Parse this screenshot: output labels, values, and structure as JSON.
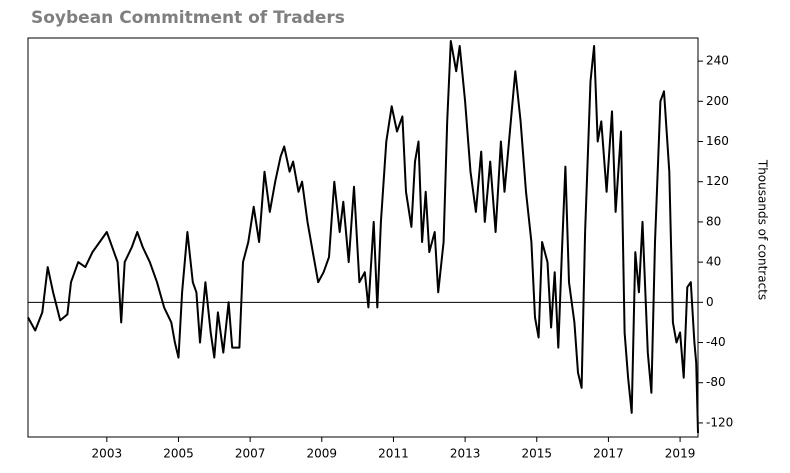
{
  "chart_data": {
    "type": "line",
    "title": "Soybean Commitment of Traders",
    "y_label": "Thousands of contracts",
    "color": "#000000",
    "x": [
      2000.8,
      2001.0,
      2001.2,
      2001.35,
      2001.5,
      2001.7,
      2001.9,
      2002.0,
      2002.2,
      2002.4,
      2002.6,
      2002.8,
      2003.0,
      2003.2,
      2003.3,
      2003.4,
      2003.5,
      2003.7,
      2003.85,
      2004.0,
      2004.2,
      2004.4,
      2004.6,
      2004.8,
      2004.9,
      2005.0,
      2005.1,
      2005.25,
      2005.4,
      2005.5,
      2005.6,
      2005.75,
      2005.9,
      2006.0,
      2006.1,
      2006.25,
      2006.4,
      2006.5,
      2006.7,
      2006.8,
      2006.95,
      2007.1,
      2007.25,
      2007.4,
      2007.55,
      2007.7,
      2007.85,
      2007.95,
      2008.1,
      2008.2,
      2008.35,
      2008.45,
      2008.6,
      2008.75,
      2008.9,
      2009.05,
      2009.2,
      2009.35,
      2009.5,
      2009.6,
      2009.75,
      2009.9,
      2010.05,
      2010.2,
      2010.3,
      2010.45,
      2010.55,
      2010.65,
      2010.8,
      2010.95,
      2011.1,
      2011.25,
      2011.35,
      2011.5,
      2011.6,
      2011.7,
      2011.8,
      2011.9,
      2012.0,
      2012.15,
      2012.25,
      2012.4,
      2012.5,
      2012.6,
      2012.75,
      2012.85,
      2013.0,
      2013.15,
      2013.3,
      2013.45,
      2013.55,
      2013.7,
      2013.85,
      2014.0,
      2014.1,
      2014.25,
      2014.4,
      2014.55,
      2014.7,
      2014.85,
      2014.95,
      2015.05,
      2015.15,
      2015.3,
      2015.4,
      2015.5,
      2015.6,
      2015.7,
      2015.8,
      2015.9,
      2016.05,
      2016.15,
      2016.25,
      2016.35,
      2016.5,
      2016.6,
      2016.7,
      2016.8,
      2016.95,
      2017.1,
      2017.2,
      2017.35,
      2017.45,
      2017.55,
      2017.65,
      2017.75,
      2017.85,
      2017.95,
      2018.1,
      2018.2,
      2018.3,
      2018.45,
      2018.55,
      2018.7,
      2018.8,
      2018.9,
      2019.0,
      2019.1,
      2019.2,
      2019.3,
      2019.4,
      2019.45,
      2019.5
    ],
    "values": [
      -15,
      -28,
      -10,
      35,
      10,
      -18,
      -12,
      20,
      40,
      35,
      50,
      60,
      70,
      50,
      40,
      -20,
      40,
      55,
      70,
      55,
      40,
      20,
      -5,
      -20,
      -40,
      -55,
      10,
      70,
      20,
      10,
      -40,
      20,
      -30,
      -55,
      -10,
      -50,
      0,
      -45,
      -45,
      40,
      60,
      95,
      60,
      130,
      90,
      120,
      145,
      155,
      130,
      140,
      110,
      120,
      80,
      50,
      20,
      30,
      45,
      120,
      70,
      100,
      40,
      115,
      20,
      30,
      -5,
      80,
      -5,
      80,
      160,
      195,
      170,
      185,
      110,
      75,
      140,
      160,
      60,
      110,
      50,
      70,
      10,
      60,
      180,
      260,
      230,
      255,
      200,
      130,
      90,
      150,
      80,
      140,
      70,
      160,
      110,
      170,
      230,
      180,
      110,
      60,
      -15,
      -35,
      60,
      40,
      -25,
      30,
      -45,
      50,
      135,
      20,
      -20,
      -70,
      -85,
      70,
      220,
      255,
      160,
      180,
      110,
      190,
      90,
      170,
      -30,
      -75,
      -110,
      50,
      10,
      80,
      -50,
      -90,
      60,
      200,
      210,
      130,
      -20,
      -40,
      -30,
      -75,
      15,
      20,
      -40,
      -60,
      -130
    ],
    "xlim": [
      2000.8,
      2019.5
    ],
    "xticks": [
      2003,
      2005,
      2007,
      2009,
      2011,
      2013,
      2015,
      2017,
      2019
    ],
    "ylim": [
      -134,
      263
    ],
    "yticks": [
      -120,
      -80,
      -40,
      0,
      40,
      80,
      120,
      160,
      200,
      240
    ]
  }
}
